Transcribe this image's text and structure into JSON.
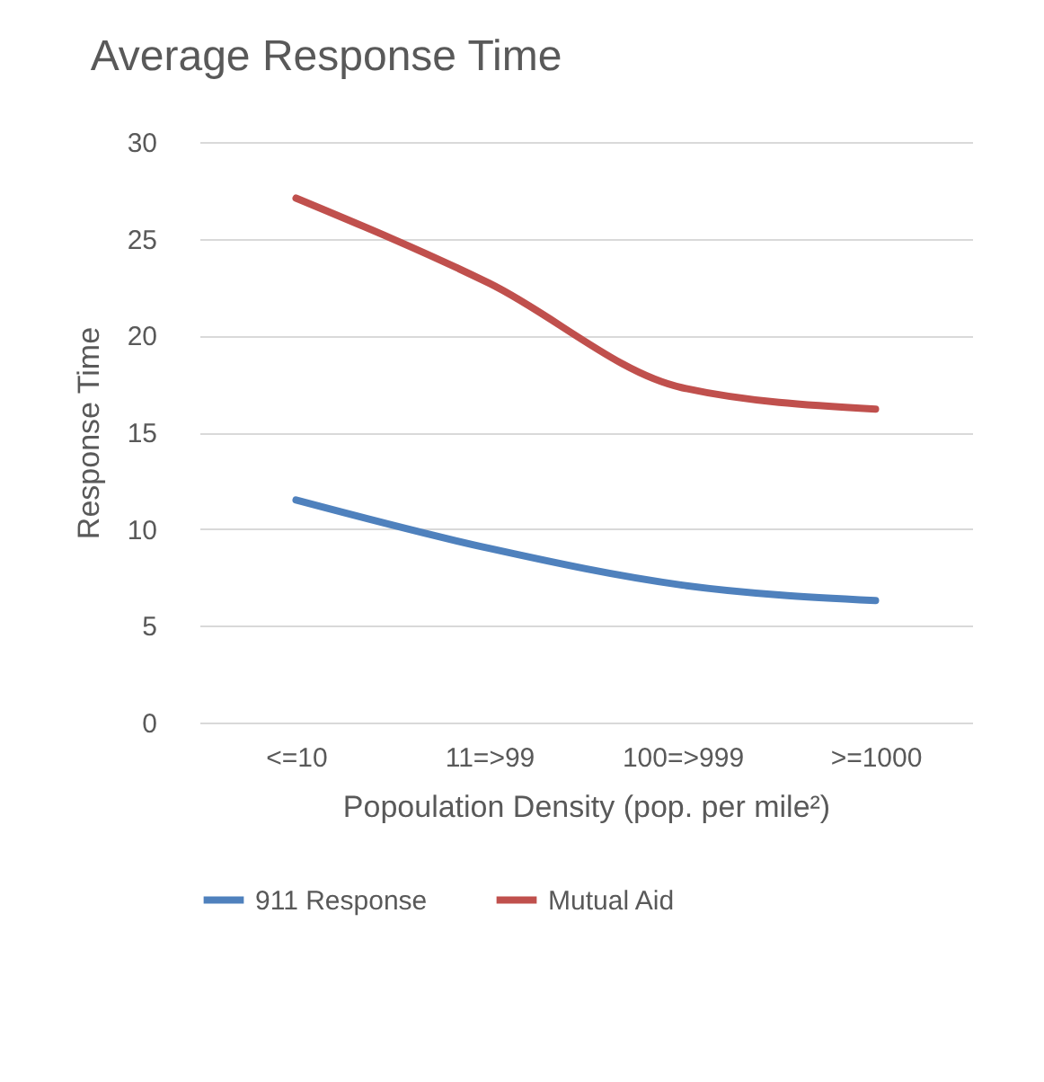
{
  "chart_data": {
    "type": "line",
    "title": "Average Response Time",
    "xlabel": "Popoulation Density (pop. per mile²)",
    "ylabel": "Response Time",
    "categories": [
      "<=10",
      "11=>99",
      "100=>999",
      ">=1000"
    ],
    "series": [
      {
        "name": "911 Response",
        "color": "#4f81bd",
        "values": [
          11.5,
          9.0,
          7.1,
          6.3
        ]
      },
      {
        "name": "Mutual Aid",
        "color": "#c0504d",
        "values": [
          27.1,
          22.7,
          17.3,
          16.2
        ]
      }
    ],
    "ylim": [
      0,
      30
    ],
    "yticks": [
      0,
      5,
      10,
      15,
      20,
      25,
      30
    ],
    "grid": "y",
    "legend": "bottom",
    "line_style": "solid"
  }
}
